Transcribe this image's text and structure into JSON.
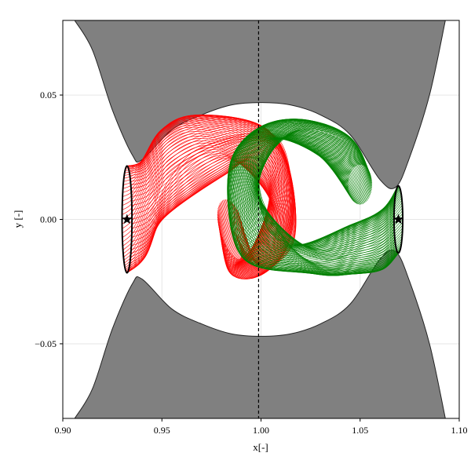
{
  "chart_data": {
    "type": "line",
    "title": "",
    "xlabel": "x[-]",
    "ylabel": "y [-]",
    "xlim": [
      0.9,
      1.1
    ],
    "ylim": [
      -0.08,
      0.08
    ],
    "xticks": [
      0.9,
      0.95,
      1.0,
      1.05,
      1.1
    ],
    "xtick_labels": [
      "0.90",
      "0.95",
      "1.00",
      "1.05",
      "1.10"
    ],
    "yticks": [
      -0.05,
      0.0,
      0.05
    ],
    "ytick_labels": [
      "−0.05",
      "0.00",
      "0.05"
    ],
    "grid": true,
    "forbidden_region_color": "#808080",
    "vertical_line_x": 0.99878,
    "lagrange_points": [
      {
        "x": 0.9324,
        "y": 0.0
      },
      {
        "x": 1.0693,
        "y": 0.0
      }
    ],
    "zero_velocity_curve": {
      "top": [
        [
          0.906,
          0.08
        ],
        [
          0.915,
          0.068
        ],
        [
          0.925,
          0.044
        ],
        [
          0.935,
          0.026
        ],
        [
          0.94,
          0.024
        ],
        [
          0.955,
          0.036
        ],
        [
          0.97,
          0.042
        ],
        [
          0.985,
          0.046
        ],
        [
          1.0,
          0.047
        ],
        [
          1.015,
          0.046
        ],
        [
          1.03,
          0.042
        ],
        [
          1.045,
          0.034
        ],
        [
          1.06,
          0.016
        ],
        [
          1.068,
          0.013
        ],
        [
          1.075,
          0.025
        ],
        [
          1.085,
          0.05
        ],
        [
          1.093,
          0.08
        ]
      ],
      "bottom": [
        [
          0.906,
          -0.08
        ],
        [
          0.915,
          -0.068
        ],
        [
          0.925,
          -0.044
        ],
        [
          0.935,
          -0.026
        ],
        [
          0.94,
          -0.024
        ],
        [
          0.955,
          -0.036
        ],
        [
          0.97,
          -0.042
        ],
        [
          0.985,
          -0.046
        ],
        [
          1.0,
          -0.047
        ],
        [
          1.015,
          -0.046
        ],
        [
          1.03,
          -0.042
        ],
        [
          1.045,
          -0.034
        ],
        [
          1.06,
          -0.016
        ],
        [
          1.068,
          -0.013
        ],
        [
          1.075,
          -0.025
        ],
        [
          1.085,
          -0.05
        ],
        [
          1.093,
          -0.08
        ]
      ]
    },
    "series": [
      {
        "color": "#ff0000",
        "periodic_orbit": {
          "center": [
            0.9324,
            0.0
          ],
          "rx": 0.0025,
          "ry": 0.0215
        },
        "manifold_lobe_center": [
          0.968,
          0.004
        ],
        "manifold_extent": {
          "x": [
            0.935,
            1.018
          ],
          "y": [
            -0.023,
            0.045
          ]
        }
      },
      {
        "color": "#008000",
        "periodic_orbit": {
          "center": [
            1.0693,
            0.0
          ],
          "rx": 0.0022,
          "ry": 0.0135
        },
        "manifold_lobe_center": [
          1.022,
          0.004
        ],
        "manifold_extent": {
          "x": [
            0.985,
            1.067
          ],
          "y": [
            -0.02,
            0.041
          ]
        }
      }
    ]
  }
}
